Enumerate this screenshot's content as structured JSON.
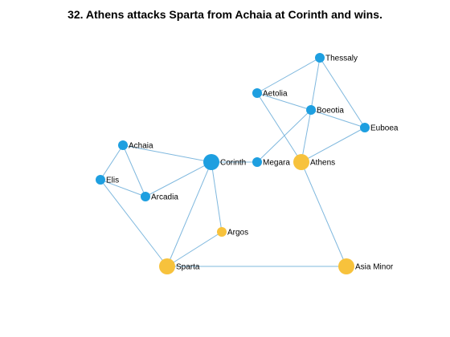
{
  "title": "32. Athens attacks Sparta from Achaia at Corinth and wins.",
  "colors": {
    "edge": "#7fb8de",
    "region": "#1e9fe0",
    "controlled": "#f7c23c"
  },
  "nodes": [
    {
      "id": "thessaly",
      "label": "Thessaly",
      "type": "region",
      "size": "small"
    },
    {
      "id": "aetolia",
      "label": "Aetolia",
      "type": "region",
      "size": "small"
    },
    {
      "id": "boeotia",
      "label": "Boeotia",
      "type": "region",
      "size": "small"
    },
    {
      "id": "euboea",
      "label": "Euboea",
      "type": "region",
      "size": "small"
    },
    {
      "id": "achaia",
      "label": "Achaia",
      "type": "region",
      "size": "small"
    },
    {
      "id": "corinth",
      "label": "Corinth",
      "type": "region",
      "size": "large"
    },
    {
      "id": "megara",
      "label": "Megara",
      "type": "region",
      "size": "small"
    },
    {
      "id": "athens",
      "label": "Athens",
      "type": "controlled",
      "size": "large"
    },
    {
      "id": "elis",
      "label": "Elis",
      "type": "region",
      "size": "small"
    },
    {
      "id": "arcadia",
      "label": "Arcadia",
      "type": "region",
      "size": "small"
    },
    {
      "id": "argos",
      "label": "Argos",
      "type": "controlled",
      "size": "small"
    },
    {
      "id": "sparta",
      "label": "Sparta",
      "type": "controlled",
      "size": "large"
    },
    {
      "id": "asiaminor",
      "label": "Asia Minor",
      "type": "controlled",
      "size": "large"
    }
  ],
  "edges": [
    [
      "thessaly",
      "aetolia"
    ],
    [
      "thessaly",
      "boeotia"
    ],
    [
      "thessaly",
      "euboea"
    ],
    [
      "aetolia",
      "boeotia"
    ],
    [
      "aetolia",
      "athens"
    ],
    [
      "boeotia",
      "euboea"
    ],
    [
      "boeotia",
      "megara"
    ],
    [
      "boeotia",
      "athens"
    ],
    [
      "euboea",
      "athens"
    ],
    [
      "achaia",
      "corinth"
    ],
    [
      "achaia",
      "elis"
    ],
    [
      "achaia",
      "arcadia"
    ],
    [
      "elis",
      "arcadia"
    ],
    [
      "elis",
      "sparta"
    ],
    [
      "arcadia",
      "corinth"
    ],
    [
      "corinth",
      "megara"
    ],
    [
      "corinth",
      "argos"
    ],
    [
      "corinth",
      "sparta"
    ],
    [
      "argos",
      "sparta"
    ],
    [
      "athens",
      "asiaminor"
    ],
    [
      "sparta",
      "asiaminor"
    ]
  ]
}
